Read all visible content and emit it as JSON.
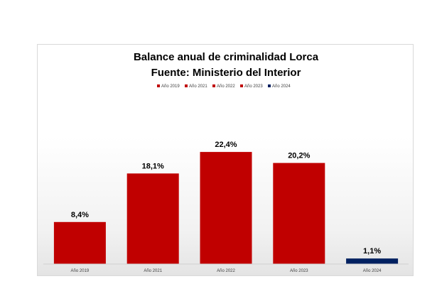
{
  "chart_data": {
    "type": "bar",
    "title_lines": [
      "Balance anual de criminalidad Lorca",
      "Fuente: Ministerio del Interior"
    ],
    "categories": [
      "Año 2019",
      "Año 2021",
      "Año 2022",
      "Año 2023",
      "Año 2024"
    ],
    "values": [
      8.4,
      18.1,
      22.4,
      20.2,
      1.1
    ],
    "data_labels": [
      "8,4%",
      "18,1%",
      "22,4%",
      "20,2%",
      "1,1%"
    ],
    "bar_colors": [
      "#c00000",
      "#c00000",
      "#c00000",
      "#c00000",
      "#002060"
    ],
    "legend": {
      "placement": "top",
      "entries": [
        {
          "label": "Año 2019",
          "color": "#c00000"
        },
        {
          "label": "Año 2021",
          "color": "#c00000"
        },
        {
          "label": "Año 2022",
          "color": "#c00000"
        },
        {
          "label": "Año 2023",
          "color": "#c00000"
        },
        {
          "label": "Año 2024",
          "color": "#002060"
        }
      ]
    },
    "ylim": [
      0,
      25
    ],
    "grid": false
  }
}
